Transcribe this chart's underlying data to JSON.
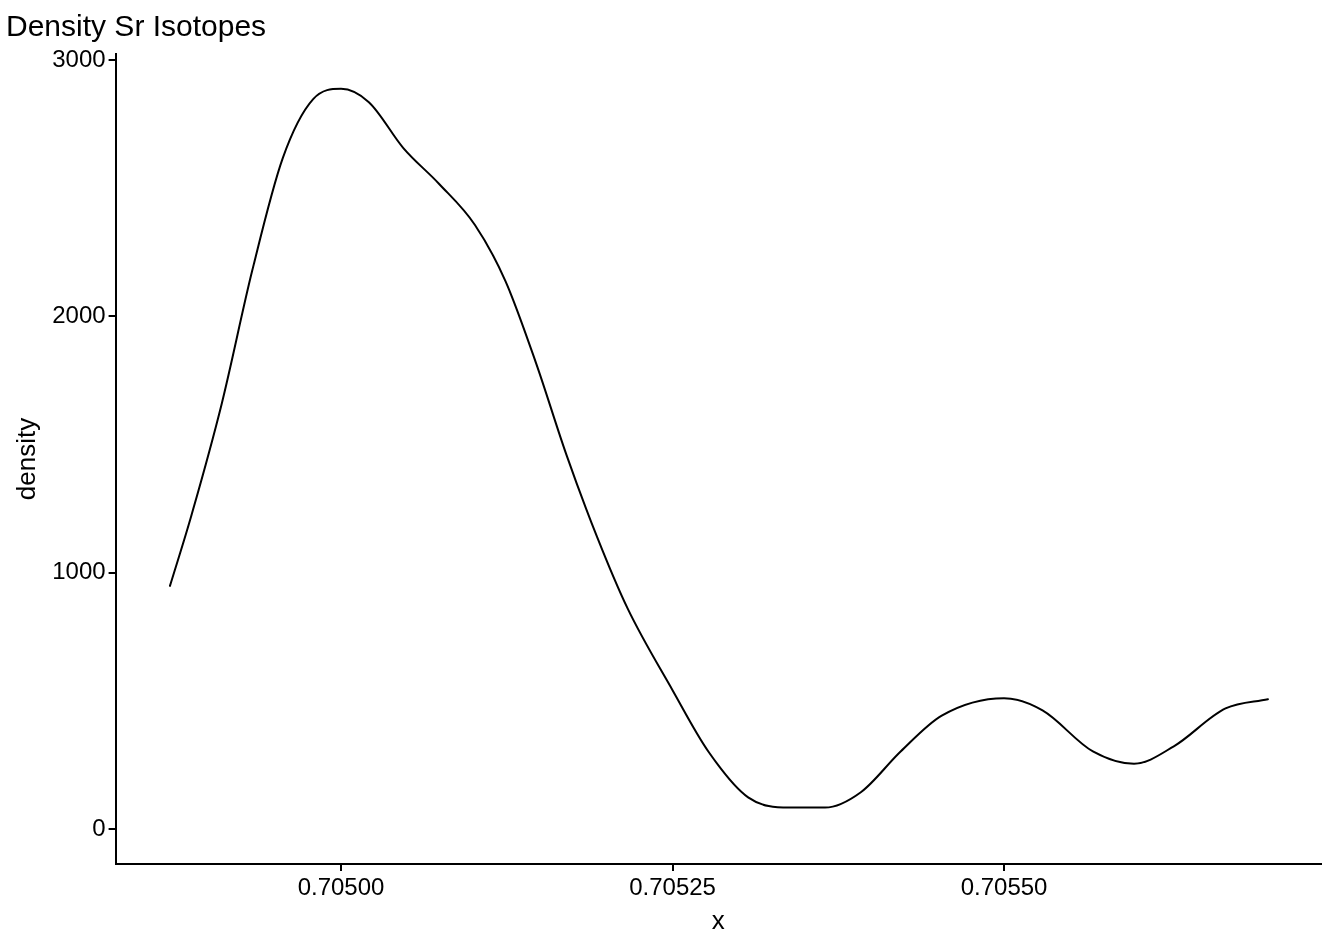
{
  "chart_data": {
    "type": "line",
    "title": "Density Sr Isotopes",
    "xlabel": "x",
    "ylabel": "density",
    "x": [
      0.704871,
      0.704887,
      0.70491,
      0.704933,
      0.704956,
      0.704979,
      0.705,
      0.705021,
      0.705047,
      0.705074,
      0.705101,
      0.705124,
      0.705147,
      0.70517,
      0.705193,
      0.705216,
      0.70525,
      0.705277,
      0.705307,
      0.705338,
      0.705365,
      0.705392,
      0.705422,
      0.705453,
      0.7055,
      0.705529,
      0.705567,
      0.705598,
      0.705628,
      0.705667,
      0.705699
    ],
    "series": [
      {
        "color": "#000000",
        "values": [
          949,
          1221,
          1659,
          2178,
          2617,
          2848,
          2888,
          2836,
          2657,
          2517,
          2357,
          2138,
          1819,
          1460,
          1141,
          862,
          542,
          303,
          124,
          84,
          84,
          144,
          303,
          443,
          511,
          463,
          303,
          255,
          323,
          471,
          507
        ]
      }
    ],
    "xlim": [
      0.70483,
      0.705739
    ],
    "ylim": [
      -136,
      3024
    ],
    "xticks": [
      {
        "value": 0.705,
        "label": "0.70500"
      },
      {
        "value": 0.70525,
        "label": "0.70525"
      },
      {
        "value": 0.7055,
        "label": "0.70550"
      }
    ],
    "yticks": [
      0,
      1000,
      2000,
      3000
    ],
    "grid": false,
    "legend": false,
    "marker": "none",
    "line_style": "solid"
  }
}
